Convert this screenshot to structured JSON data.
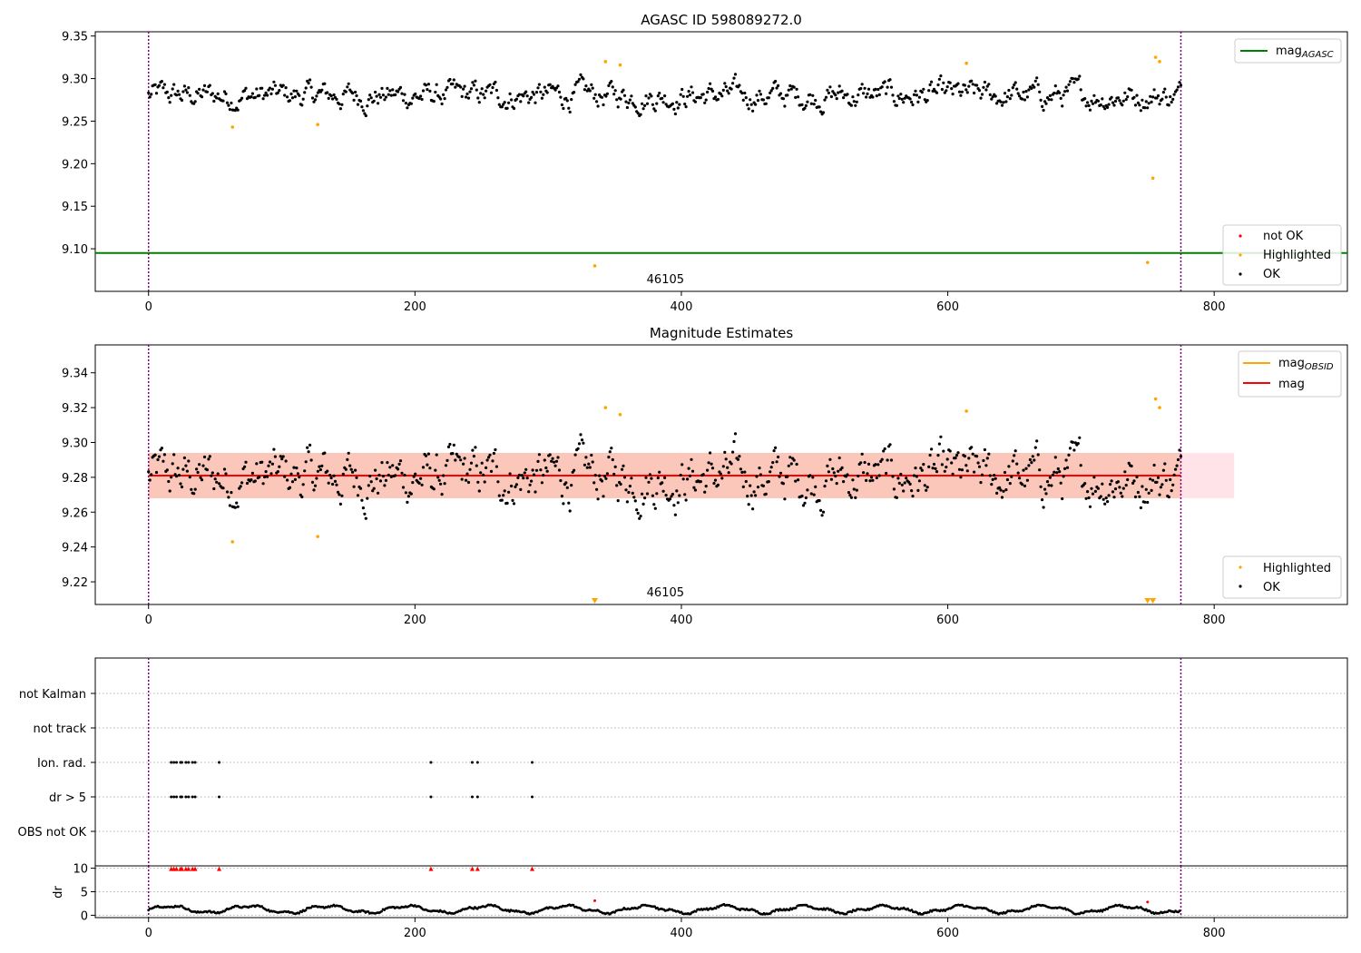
{
  "colors": {
    "ok": "#000000",
    "highlighted": "#ffa500",
    "not_ok": "#ff0000",
    "mag_agasc": "#008000",
    "mag_obsid": "#ffa500",
    "mag": "#ff0000",
    "obs_boundary": "#800080",
    "band_inner": "#f4a582",
    "band_outer": "#ffc0cb"
  },
  "chart_data": [
    {
      "type": "scatter",
      "title": "AGASC ID 598089272.0",
      "xlim": [
        -40,
        900
      ],
      "ylim": [
        9.05,
        9.355
      ],
      "x_ticks": [
        0,
        200,
        400,
        600,
        800
      ],
      "y_ticks": [
        9.1,
        9.15,
        9.2,
        9.25,
        9.3,
        9.35
      ],
      "y_tick_labels": [
        "9.10",
        "9.15",
        "9.20",
        "9.25",
        "9.30",
        "9.35"
      ],
      "mag_agasc": 9.095,
      "obs_boundaries": [
        0,
        775
      ],
      "obsid_label": "46105",
      "obsid_label_x": 388,
      "ok_series": {
        "name": "OK",
        "n": 775,
        "x_max": 775,
        "center": 9.28,
        "spread": 0.013
      },
      "highlighted_points": [
        {
          "x": 63,
          "y": 9.243
        },
        {
          "x": 127,
          "y": 9.246
        },
        {
          "x": 335,
          "y": 9.08
        },
        {
          "x": 343,
          "y": 9.32
        },
        {
          "x": 354,
          "y": 9.316
        },
        {
          "x": 614,
          "y": 9.318
        },
        {
          "x": 750,
          "y": 9.084
        },
        {
          "x": 754,
          "y": 9.183
        },
        {
          "x": 756,
          "y": 9.325
        },
        {
          "x": 759,
          "y": 9.32
        }
      ],
      "legend_lines": {
        "label": "mag",
        "sub": "AGASC",
        "placement": "top-right"
      },
      "legend_points": {
        "entries": [
          "not OK",
          "Highlighted",
          "OK"
        ],
        "placement": "bottom-right"
      },
      "grid": false
    },
    {
      "type": "scatter",
      "title": "Magnitude Estimates",
      "xlim": [
        -40,
        900
      ],
      "ylim": [
        9.207,
        9.356
      ],
      "x_ticks": [
        0,
        200,
        400,
        600,
        800
      ],
      "y_ticks": [
        9.22,
        9.24,
        9.26,
        9.28,
        9.3,
        9.32,
        9.34
      ],
      "y_tick_labels": [
        "9.22",
        "9.24",
        "9.26",
        "9.28",
        "9.30",
        "9.32",
        "9.34"
      ],
      "mag": 9.281,
      "band_inner": [
        9.268,
        9.294
      ],
      "band_outer": [
        9.268,
        9.294
      ],
      "band_x": [
        0,
        815
      ],
      "mag_line_x": [
        0,
        775
      ],
      "obs_boundaries": [
        0,
        775
      ],
      "obsid_label": "46105",
      "obsid_label_x": 388,
      "clipped_low_points_x": [
        335,
        750,
        754
      ],
      "highlighted_points": [
        {
          "x": 63,
          "y": 9.243
        },
        {
          "x": 127,
          "y": 9.246
        },
        {
          "x": 343,
          "y": 9.32
        },
        {
          "x": 354,
          "y": 9.316
        },
        {
          "x": 614,
          "y": 9.318
        },
        {
          "x": 756,
          "y": 9.325
        },
        {
          "x": 759,
          "y": 9.32
        }
      ],
      "legend_lines": {
        "entries": [
          {
            "label": "mag",
            "sub": "OBSID"
          },
          {
            "label": "mag",
            "sub": ""
          }
        ],
        "placement": "top-right"
      },
      "legend_points": {
        "entries": [
          "Highlighted",
          "OK"
        ],
        "placement": "bottom-right"
      },
      "grid": false
    },
    {
      "type": "scatter",
      "title": "",
      "xlim": [
        -40,
        900
      ],
      "x_ticks": [
        0,
        200,
        400,
        600,
        800
      ],
      "categories": [
        "not Kalman",
        "not track",
        "Ion. rad.",
        "dr > 5",
        "OBS not OK"
      ],
      "flag_x": [
        17,
        19,
        21,
        24,
        25,
        28,
        30,
        33,
        35,
        53,
        212,
        243,
        247,
        288
      ],
      "flags": {
        "not Kalman": false,
        "not track": false,
        "Ion. rad.": true,
        "dr > 5": true,
        "OBS not OK": false
      },
      "obs_boundaries": [
        0,
        775
      ],
      "grid": true
    },
    {
      "type": "scatter",
      "title": "",
      "ylabel": "dr",
      "xlim": [
        -40,
        900
      ],
      "ylim": [
        -0.5,
        10.5
      ],
      "x_ticks": [
        0,
        200,
        400,
        600,
        800
      ],
      "y_ticks": [
        0,
        5,
        10
      ],
      "y_tick_labels": [
        "0",
        "5",
        "10"
      ],
      "clipped_high_points_x": [
        17,
        19,
        21,
        24,
        25,
        28,
        30,
        33,
        35,
        53,
        212,
        243,
        247,
        288
      ],
      "extra_red_points": [
        {
          "x": 335,
          "y": 3.1
        },
        {
          "x": 750,
          "y": 2.8
        }
      ],
      "obs_boundaries": [
        0,
        775
      ],
      "grid": true
    }
  ]
}
